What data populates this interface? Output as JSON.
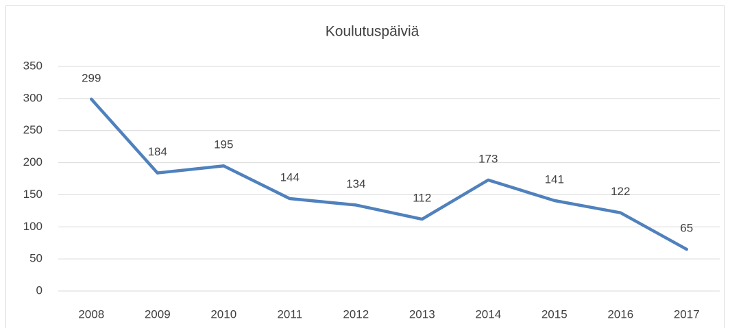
{
  "chart_data": {
    "type": "line",
    "title": "Koulutuspäiviä",
    "categories": [
      "2008",
      "2009",
      "2010",
      "2011",
      "2012",
      "2013",
      "2014",
      "2015",
      "2016",
      "2017"
    ],
    "values": [
      299,
      184,
      195,
      144,
      134,
      112,
      173,
      141,
      122,
      65
    ],
    "color": "#4f81bd",
    "ylim": [
      0,
      350
    ],
    "yticks": [
      0,
      50,
      100,
      150,
      200,
      250,
      300,
      350
    ],
    "grid": true
  }
}
